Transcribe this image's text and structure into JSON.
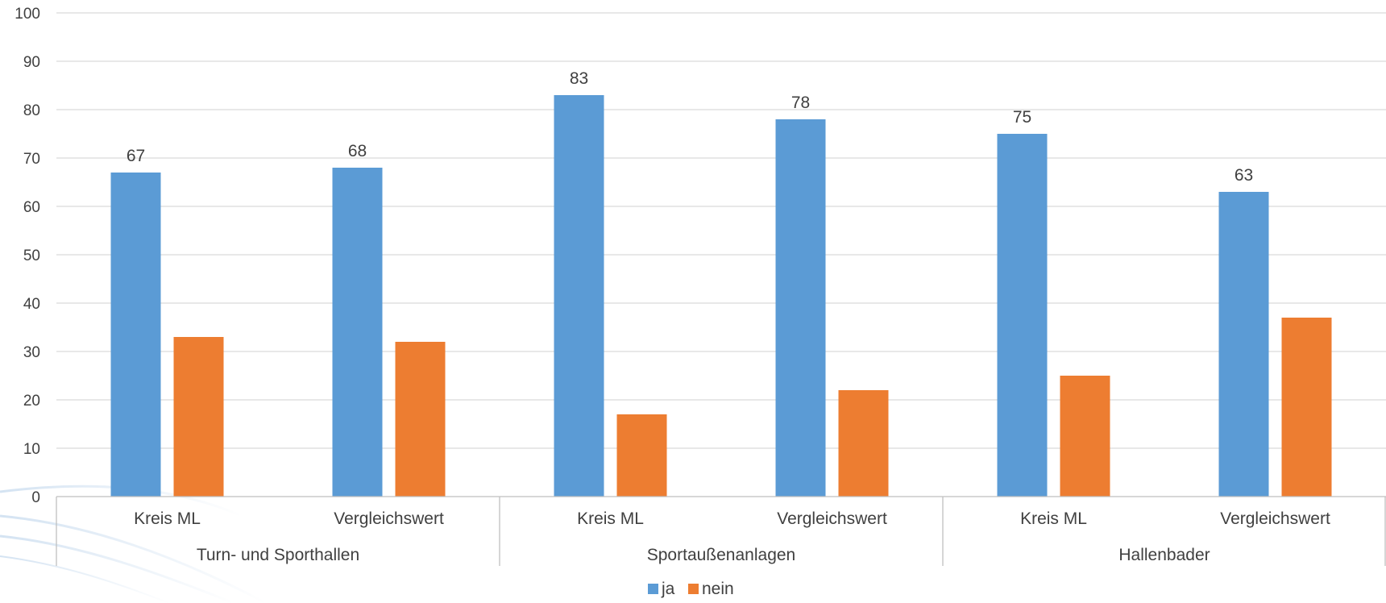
{
  "chart_data": {
    "type": "bar",
    "title": "",
    "xlabel": "",
    "ylabel": "",
    "ylim": [
      0,
      100
    ],
    "yticks": [
      0,
      10,
      20,
      30,
      40,
      50,
      60,
      70,
      80,
      90,
      100
    ],
    "grid": true,
    "legend_position": "bottom",
    "groups": [
      {
        "label": "Turn- und Sporthallen",
        "categories": [
          "Kreis ML",
          "Vergleichswert"
        ]
      },
      {
        "label": "Sportaußenanlagen",
        "categories": [
          "Kreis ML",
          "Vergleichswert"
        ]
      },
      {
        "label": "Hallenbader",
        "categories": [
          "Kreis ML",
          "Vergleichswert"
        ]
      }
    ],
    "series": [
      {
        "name": "ja",
        "color": "#5B9BD5",
        "values": [
          67,
          68,
          83,
          78,
          75,
          63
        ],
        "data_labels": [
          "67",
          "68",
          "83",
          "78",
          "75",
          "63"
        ]
      },
      {
        "name": "nein",
        "color": "#ED7D31",
        "values": [
          33,
          32,
          17,
          22,
          25,
          37
        ]
      }
    ]
  }
}
